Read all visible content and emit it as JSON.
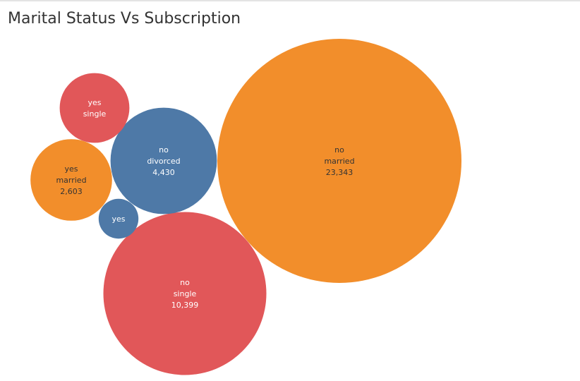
{
  "title": "Marital Status Vs Subscription",
  "colors": {
    "married": "#f28e2b",
    "single": "#e15759",
    "divorced": "#4e79a7"
  },
  "chart_data": {
    "type": "packed-bubble",
    "title": "Marital Status Vs Subscription",
    "size_measure_visible": true,
    "bubbles": [
      {
        "subscribed": "no",
        "marital": "married",
        "value": 23343,
        "label": [
          "no",
          "married",
          "23,343"
        ],
        "text_color": "#333333"
      },
      {
        "subscribed": "no",
        "marital": "single",
        "value": 10399,
        "label": [
          "no",
          "single",
          "10,399"
        ],
        "text_color": "#ffffff"
      },
      {
        "subscribed": "no",
        "marital": "divorced",
        "value": 4430,
        "label": [
          "no",
          "divorced",
          "4,430"
        ],
        "text_color": "#ffffff"
      },
      {
        "subscribed": "yes",
        "marital": "married",
        "value": 2603,
        "label": [
          "yes",
          "married",
          "2,603"
        ],
        "text_color": "#333333"
      },
      {
        "subscribed": "yes",
        "marital": "single",
        "value": 1900,
        "label": [
          "yes",
          "single"
        ],
        "text_color": "#ffffff"
      },
      {
        "subscribed": "yes",
        "marital": "divorced",
        "value": 620,
        "label": [
          "yes"
        ],
        "text_color": "#ffffff"
      }
    ]
  }
}
